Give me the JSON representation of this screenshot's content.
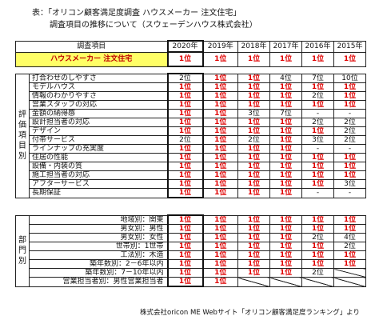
{
  "title": "表：「オリコン顧客満足度調査 ハウスメーカー 注文住宅」",
  "subtitle": "調査項目の推移について（スウェーデンハウス株式会社）",
  "header": {
    "item_label": "調査項目",
    "years": [
      "2020年",
      "2019年",
      "2018年",
      "2017年",
      "2016年",
      "2015年"
    ]
  },
  "overall": {
    "label": "ハウスメーカー 注文住宅",
    "values": [
      "1位",
      "1位",
      "1位",
      "1位",
      "1位",
      "1位"
    ]
  },
  "rating_section": {
    "category": "評価項目別",
    "rows": [
      {
        "label": "打合わせのしやすさ",
        "values": [
          "2位",
          "1位",
          "1位",
          "4位",
          "7位",
          "10位"
        ]
      },
      {
        "label": "モデルハウス",
        "values": [
          "1位",
          "1位",
          "1位",
          "1位",
          "1位",
          "1位"
        ]
      },
      {
        "label": "情報のわかりやすさ",
        "values": [
          "1位",
          "1位",
          "1位",
          "1位",
          "2位",
          "1位"
        ]
      },
      {
        "label": "営業スタッフの対応",
        "values": [
          "1位",
          "1位",
          "1位",
          "1位",
          "1位",
          "1位"
        ]
      },
      {
        "label": "金額の納得感",
        "values": [
          "1位",
          "1位",
          "3位",
          "7位",
          "-",
          "-"
        ]
      },
      {
        "label": "設計担当者の対応",
        "values": [
          "1位",
          "1位",
          "1位",
          "1位",
          "2位",
          "2位"
        ]
      },
      {
        "label": "デザイン",
        "values": [
          "1位",
          "1位",
          "1位",
          "1位",
          "1位",
          "2位"
        ]
      },
      {
        "label": "付帯サービス",
        "values": [
          "2位",
          "1位",
          "2位",
          "1位",
          "3位",
          "2位"
        ]
      },
      {
        "label": "ラインナップの充実度",
        "values": [
          "1位",
          "1位",
          "1位",
          "1位",
          "-",
          "-"
        ]
      },
      {
        "label": "住居の性能",
        "values": [
          "1位",
          "1位",
          "1位",
          "1位",
          "1位",
          "1位"
        ]
      },
      {
        "label": "設備・内装の質",
        "values": [
          "1位",
          "1位",
          "1位",
          "1位",
          "1位",
          "1位"
        ]
      },
      {
        "label": "施工担当者の対応",
        "values": [
          "1位",
          "1位",
          "1位",
          "1位",
          "1位",
          "1位"
        ]
      },
      {
        "label": "アフターサービス",
        "values": [
          "1位",
          "1位",
          "1位",
          "1位",
          "1位",
          "3位"
        ]
      },
      {
        "label": "長期保証",
        "values": [
          "1位",
          "1位",
          "1位",
          "1位",
          "-",
          "-"
        ]
      }
    ]
  },
  "dept_section": {
    "category": "部門別",
    "rows": [
      {
        "label": "地域別：関東",
        "values": [
          "1位",
          "1位",
          "1位",
          "1位",
          "1位",
          "1位"
        ]
      },
      {
        "label": "男女別：男性",
        "values": [
          "1位",
          "1位",
          "1位",
          "1位",
          "1位",
          "1位"
        ]
      },
      {
        "label": "男女別：女性",
        "values": [
          "1位",
          "1位",
          "1位",
          "1位",
          "2位",
          "4位"
        ]
      },
      {
        "label": "世帯別：1世帯",
        "values": [
          "1位",
          "1位",
          "1位",
          "1位",
          "1位",
          "2位"
        ]
      },
      {
        "label": "工法別：木造",
        "values": [
          "1位",
          "1位",
          "1位",
          "1位",
          "1位",
          "1位"
        ]
      },
      {
        "label": "築年数別：2－6年以内",
        "values": [
          "1位",
          "1位",
          "1位",
          "1位",
          "1位",
          "1位"
        ]
      },
      {
        "label": "築年数別：7－10年以内",
        "values": [
          "1位",
          "1位",
          "1位",
          "1位",
          "2位",
          ""
        ]
      },
      {
        "label": "営業担当者別：男性営業担当者",
        "values": [
          "1位",
          "1位",
          "",
          "",
          "",
          ""
        ]
      }
    ]
  },
  "footer": "株式会社oricon ME Webサイト「オリコン顧客満足度ランキング」より",
  "colors": {
    "first_place": "#e00000",
    "highlight": "#ffff66"
  }
}
